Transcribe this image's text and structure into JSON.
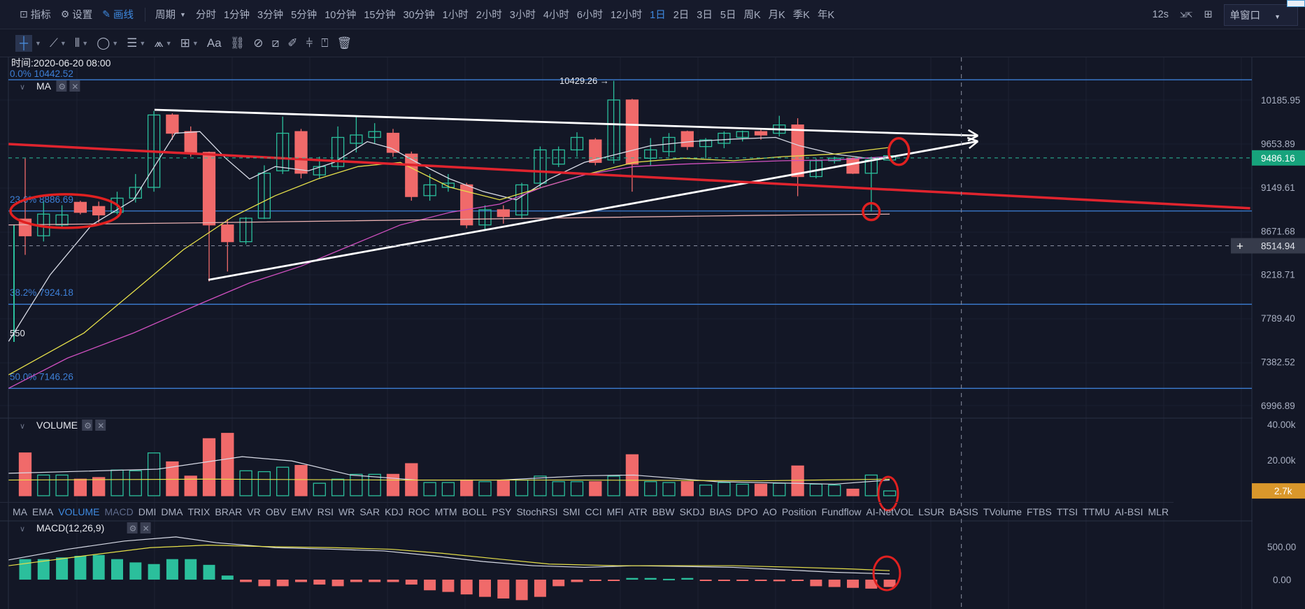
{
  "toolbar": {
    "indicators": "指标",
    "settings": "设置",
    "drawing": "画线",
    "period_label": "周期",
    "periods": [
      "分时",
      "1分钟",
      "3分钟",
      "5分钟",
      "10分钟",
      "15分钟",
      "30分钟",
      "1小时",
      "2小时",
      "3小时",
      "4小时",
      "6小时",
      "12小时",
      "1日",
      "2日",
      "3日",
      "5日",
      "周K",
      "月K",
      "季K",
      "年K"
    ],
    "active_period": "1日",
    "refresh": "12s",
    "window_mode": "单窗口"
  },
  "drawing_tools": [
    "crosshair-icon",
    "trend-line-icon",
    "vertical-lines-icon",
    "circle-icon",
    "parallel-lines-icon",
    "pattern-icon",
    "measure-icon",
    "text-icon",
    "magnet-icon",
    "eraser-icon",
    "ruler-icon",
    "pen-icon",
    "candles-icon",
    "lock-icon",
    "trash-icon"
  ],
  "drawing_text_label": "Aa",
  "info": {
    "time": "时间:2020-06-20 08:00",
    "left_label": "550",
    "high_label": "10429.26 →"
  },
  "panes": {
    "main": "MA",
    "volume": "VOLUME",
    "macd": "MACD(12,26,9)"
  },
  "colors": {
    "up": "#2bbf9c",
    "down": "#f06a6a",
    "fib": "#3d7fd6",
    "ma_white": "#d8dbe6",
    "ma_yellow": "#e6e04a",
    "ma_magenta": "#d050c0",
    "ma_pink": "#e8b0b0",
    "trend_red": "#e0242e",
    "circle": "#e02020",
    "price_badge": "#17a37c",
    "vol_badge": "#d9972b"
  },
  "price_axis": {
    "min": 6996.89,
    "max": 10185.95,
    "scale": "log",
    "ticks": [
      "10185.95",
      "9653.89",
      "9149.61",
      "8671.68",
      "8218.71",
      "7789.40",
      "7382.52",
      "6996.89"
    ]
  },
  "current_price": "9486.16",
  "crosshair_price": "8514.94",
  "crosshair_index": 50.9,
  "fib_levels": [
    {
      "label": "0.0% 10442.52",
      "price": 10442.52
    },
    {
      "label": "23.6% 8886.69",
      "price": 8886.69
    },
    {
      "label": "38.2% 7924.18",
      "price": 7924.18
    },
    {
      "label": "50.0% 7146.26",
      "price": 7146.26
    }
  ],
  "candles": [
    [
      8799,
      9480,
      8420,
      8620
    ],
    [
      8620,
      8990,
      8560,
      8853
    ],
    [
      8736,
      8950,
      8700,
      8844
    ],
    [
      8982,
      9000,
      8850,
      8872
    ],
    [
      8936,
      8990,
      8760,
      8844
    ],
    [
      8872,
      9100,
      8850,
      9028
    ],
    [
      9028,
      9300,
      8980,
      9149
    ],
    [
      9149,
      10050,
      9100,
      10000
    ],
    [
      10000,
      10020,
      9700,
      9778
    ],
    [
      9798,
      9860,
      9500,
      9551
    ],
    [
      9551,
      9560,
      8150,
      8736
    ],
    [
      8736,
      8800,
      8250,
      8558
    ],
    [
      8558,
      8820,
      8530,
      8808
    ],
    [
      8808,
      9400,
      8800,
      9309
    ],
    [
      9337,
      9980,
      9300,
      9778
    ],
    [
      9798,
      9830,
      9250,
      9309
    ],
    [
      9290,
      9500,
      9250,
      9386
    ],
    [
      9386,
      9860,
      9350,
      9728
    ],
    [
      9658,
      9980,
      9550,
      9757
    ],
    [
      9728,
      9900,
      9650,
      9798
    ],
    [
      9778,
      9830,
      9500,
      9551
    ],
    [
      9531,
      9560,
      9000,
      9046
    ],
    [
      9056,
      9300,
      9000,
      9177
    ],
    [
      9149,
      9300,
      9100,
      9196
    ],
    [
      9177,
      9200,
      8700,
      8736
    ],
    [
      8736,
      8950,
      8680,
      8900
    ],
    [
      8900,
      8950,
      8750,
      8826
    ],
    [
      8844,
      9200,
      8800,
      9177
    ],
    [
      9196,
      9620,
      9150,
      9580
    ],
    [
      9414,
      9620,
      9380,
      9580
    ],
    [
      9580,
      9790,
      9500,
      9728
    ],
    [
      9698,
      9720,
      9400,
      9434
    ],
    [
      9462,
      10429,
      9420,
      10186
    ],
    [
      10186,
      10200,
      9100,
      9414
    ],
    [
      9482,
      9720,
      9400,
      9580
    ],
    [
      9560,
      9780,
      9500,
      9728
    ],
    [
      9798,
      9810,
      9580,
      9619
    ],
    [
      9619,
      9720,
      9480,
      9698
    ],
    [
      9658,
      9800,
      9600,
      9778
    ],
    [
      9728,
      9810,
      9680,
      9798
    ],
    [
      9798,
      9820,
      9700,
      9757
    ],
    [
      9778,
      9990,
      9740,
      9878
    ],
    [
      9878,
      9960,
      9050,
      9271
    ],
    [
      9271,
      9480,
      9250,
      9453
    ],
    [
      9453,
      9500,
      9420,
      9482
    ],
    [
      9482,
      9490,
      9300,
      9309
    ],
    [
      9309,
      9500,
      8880,
      9462
    ],
    [
      9462,
      9540,
      9450,
      9512
    ]
  ],
  "ma_lines": [
    {
      "name": "ma-white",
      "color": "#d8dbe6",
      "points": [
        [
          -0.9,
          7571
        ],
        [
          1.36,
          8217
        ],
        [
          3.62,
          8736
        ],
        [
          5.89,
          9010
        ],
        [
          8.16,
          9778
        ],
        [
          9.5,
          9798
        ],
        [
          10.9,
          9482
        ],
        [
          12.2,
          9243
        ],
        [
          13.6,
          9386
        ],
        [
          15.4,
          9337
        ],
        [
          16.8,
          9434
        ],
        [
          18.6,
          9678
        ],
        [
          19.9,
          9600
        ],
        [
          21.3,
          9434
        ],
        [
          23.1,
          9243
        ],
        [
          24.9,
          9102
        ],
        [
          26.7,
          9010
        ],
        [
          28.5,
          9243
        ],
        [
          30.4,
          9434
        ],
        [
          32.2,
          9531
        ],
        [
          34.0,
          9629
        ],
        [
          36.2,
          9678
        ],
        [
          38.5,
          9708
        ],
        [
          40.8,
          9728
        ],
        [
          42.1,
          9629
        ],
        [
          44.0,
          9531
        ],
        [
          45.8,
          9482
        ],
        [
          47.0,
          9482
        ]
      ]
    },
    {
      "name": "ma-yellow",
      "color": "#e6e04a",
      "points": [
        [
          -0.9,
          7266
        ],
        [
          3.2,
          7650
        ],
        [
          5.9,
          8050
        ],
        [
          8.6,
          8474
        ],
        [
          11.3,
          8826
        ],
        [
          13.6,
          9056
        ],
        [
          15.9,
          9243
        ],
        [
          18.1,
          9386
        ],
        [
          20.4,
          9434
        ],
        [
          23.1,
          9149
        ],
        [
          25.8,
          9010
        ],
        [
          28.1,
          9149
        ],
        [
          30.4,
          9290
        ],
        [
          33.1,
          9434
        ],
        [
          35.8,
          9482
        ],
        [
          38.5,
          9453
        ],
        [
          41.2,
          9501
        ],
        [
          44.0,
          9531
        ],
        [
          47.0,
          9609
        ]
      ]
    },
    {
      "name": "ma-magenta",
      "color": "#d050c0",
      "points": [
        [
          -0.9,
          7147
        ],
        [
          2.3,
          7417
        ],
        [
          5.9,
          7650
        ],
        [
          9.5,
          7928
        ],
        [
          12.2,
          8135
        ],
        [
          15.0,
          8304
        ],
        [
          17.7,
          8518
        ],
        [
          20.4,
          8736
        ],
        [
          23.1,
          8872
        ],
        [
          25.8,
          8963
        ],
        [
          28.1,
          9149
        ],
        [
          30.4,
          9290
        ],
        [
          33.1,
          9386
        ],
        [
          35.8,
          9414
        ],
        [
          38.5,
          9434
        ],
        [
          41.2,
          9453
        ],
        [
          44.0,
          9462
        ],
        [
          47.0,
          9501
        ]
      ]
    },
    {
      "name": "ma-pink",
      "color": "#e8b0b0",
      "points": [
        [
          -0.9,
          8736
        ],
        [
          10,
          8760
        ],
        [
          25,
          8800
        ],
        [
          40,
          8840
        ],
        [
          47,
          8853
        ]
      ]
    }
  ],
  "trend_lines": [
    {
      "name": "resistance-line",
      "color": "#ffffff",
      "from": [
        7.03,
        10064
      ],
      "to": [
        51.8,
        9749
      ],
      "arrow": true
    },
    {
      "name": "support-line",
      "color": "#ffffff",
      "from": [
        9.96,
        8166
      ],
      "to": [
        51.8,
        9682
      ],
      "arrow": true
    },
    {
      "name": "red-trend-line",
      "color": "#e0242e",
      "from": [
        -0.9,
        9649
      ],
      "to": [
        66.6,
        8917
      ],
      "arrow": false
    }
  ],
  "volume": {
    "ticks": [
      "40.00k",
      "20.00k"
    ],
    "max": 40,
    "current": "2.7k",
    "values": [
      24,
      11.6,
      11.6,
      9.3,
      10.2,
      14.4,
      14,
      24,
      19,
      11,
      32,
      35,
      14,
      13.5,
      16,
      17,
      7,
      9.3,
      12,
      12,
      12,
      18,
      7.4,
      7.4,
      8.8,
      7.9,
      8.8,
      8.8,
      11,
      7.9,
      7.9,
      7.9,
      11,
      23,
      7.9,
      7.4,
      7.9,
      6,
      7.4,
      6.5,
      6.5,
      7,
      16.7,
      6.5,
      6,
      3.7,
      11.6,
      2.7
    ],
    "ma_white": [
      [
        -0.9,
        12.6
      ],
      [
        7.2,
        14.9
      ],
      [
        11.8,
        21.9
      ],
      [
        14.5,
        19.5
      ],
      [
        17.7,
        11.6
      ],
      [
        21.3,
        8.8
      ],
      [
        25.8,
        8.8
      ],
      [
        30.4,
        11.2
      ],
      [
        33.1,
        11.6
      ],
      [
        37.6,
        7.9
      ],
      [
        44.0,
        6.5
      ],
      [
        47.0,
        8.8
      ]
    ],
    "ma_yellow": [
      [
        -0.9,
        8.8
      ],
      [
        10,
        9.3
      ],
      [
        20,
        8.8
      ],
      [
        30,
        8.8
      ],
      [
        40,
        8.4
      ],
      [
        47,
        9.3
      ]
    ]
  },
  "macd": {
    "ticks": [
      "500.00",
      "0.00"
    ],
    "hist": [
      312,
      312,
      337,
      362,
      375,
      312,
      262,
      237,
      312,
      312,
      225,
      62,
      -37,
      -100,
      -100,
      -37,
      -75,
      -100,
      -37,
      -37,
      -37,
      -75,
      -162,
      -187,
      -225,
      -262,
      -287,
      -312,
      -262,
      -100,
      -37,
      -12,
      -12,
      25,
      25,
      12,
      25,
      -12,
      -12,
      -12,
      -12,
      -25,
      -12,
      -100,
      -112,
      -125,
      -137,
      -112
    ],
    "dif": [
      [
        -0.9,
        300
      ],
      [
        2.3,
        462
      ],
      [
        5.4,
        587
      ],
      [
        8.2,
        650
      ],
      [
        10.4,
        562
      ],
      [
        13.6,
        487
      ],
      [
        16.8,
        462
      ],
      [
        19.5,
        437
      ],
      [
        22.2,
        362
      ],
      [
        24.9,
        275
      ],
      [
        27.6,
        212
      ],
      [
        30.4,
        187
      ],
      [
        33.1,
        212
      ],
      [
        35.8,
        200
      ],
      [
        38.5,
        187
      ],
      [
        41.2,
        150
      ],
      [
        44.0,
        112
      ],
      [
        47.0,
        87
      ]
    ],
    "dea": [
      [
        -0.9,
        212
      ],
      [
        3.2,
        362
      ],
      [
        6.8,
        487
      ],
      [
        9.9,
        525
      ],
      [
        13.6,
        500
      ],
      [
        16.8,
        487
      ],
      [
        19.9,
        462
      ],
      [
        22.7,
        400
      ],
      [
        25.8,
        312
      ],
      [
        28.5,
        237
      ],
      [
        32.2,
        212
      ],
      [
        34.9,
        212
      ],
      [
        38.5,
        212
      ],
      [
        42.1,
        187
      ],
      [
        44.9,
        162
      ],
      [
        47.0,
        137
      ]
    ]
  },
  "annotations": [
    {
      "name": "circle-fib-236",
      "center": [
        2.2,
        8886
      ],
      "rx": 3.0,
      "ry_pct": 24
    },
    {
      "name": "circle-apex",
      "center": [
        47.5,
        9560
      ],
      "rx": 0.55,
      "ry_pct": 19
    },
    {
      "name": "circle-low",
      "center": [
        46.0,
        8880
      ],
      "rx": 0.45,
      "ry_pct": 12
    }
  ],
  "indicator_tabs": [
    "MA",
    "EMA",
    "VOLUME",
    "MACD",
    "DMI",
    "DMA",
    "TRIX",
    "BRAR",
    "VR",
    "OBV",
    "EMV",
    "RSI",
    "WR",
    "SAR",
    "KDJ",
    "ROC",
    "MTM",
    "BOLL",
    "PSY",
    "StochRSI",
    "SMI",
    "CCI",
    "MFI",
    "ATR",
    "BBW",
    "SKDJ",
    "BIAS",
    "DPO",
    "AO",
    "Position",
    "Fundflow",
    "AI-NetVOL",
    "LSUR",
    "BASIS",
    "TVolume",
    "FTBS",
    "TTSI",
    "TTMU",
    "AI-BSI",
    "MLR"
  ],
  "active_tab": "VOLUME"
}
